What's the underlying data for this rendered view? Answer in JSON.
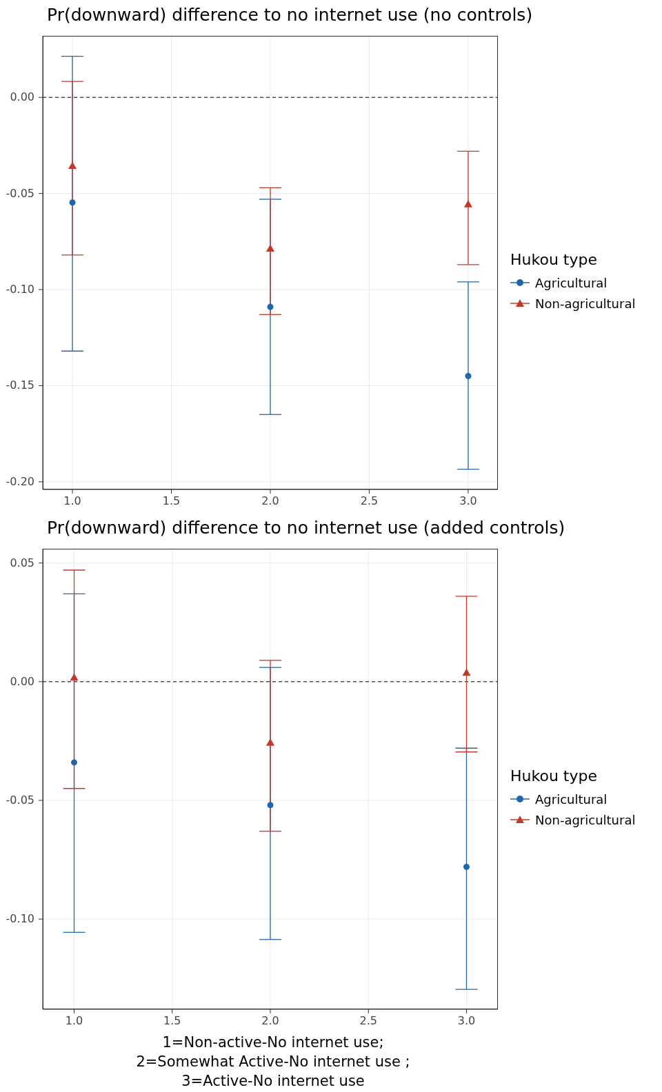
{
  "chart_data": [
    {
      "type": "scatter",
      "title": "Pr(downward) difference to no internet use (no controls)",
      "legend_title": "Hukou type",
      "legend": "right",
      "grid": true,
      "x": [
        1,
        2,
        3
      ],
      "xlim": [
        0.85,
        3.15
      ],
      "xticks": [
        {
          "value": 1,
          "label": "1.0"
        },
        {
          "value": 1.5,
          "label": "1.5"
        },
        {
          "value": 2,
          "label": "2.0"
        },
        {
          "value": 2.5,
          "label": "2.5"
        },
        {
          "value": 3,
          "label": "3.0"
        }
      ],
      "ylim": [
        -0.204,
        0.032
      ],
      "yticks": [
        {
          "value": -0.2,
          "label": "-0.20"
        },
        {
          "value": -0.15,
          "label": "-0.15"
        },
        {
          "value": -0.1,
          "label": "-0.10"
        },
        {
          "value": -0.05,
          "label": "-0.05"
        },
        {
          "value": 0,
          "label": "0.00"
        }
      ],
      "ref_lines": [
        {
          "axis": "y",
          "value": 0,
          "line_style": "dashed",
          "color": "#000000"
        }
      ],
      "series": [
        {
          "name": "Agricultural",
          "color": "#2166ac",
          "marker": "circle",
          "values": [
            -0.0547,
            -0.109,
            -0.145
          ],
          "errors": [
            [
              -0.132,
              0.0214
            ],
            [
              -0.165,
              -0.053
            ],
            [
              -0.1935,
              -0.096
            ]
          ]
        },
        {
          "name": "Non-agricultural",
          "color": "#c0392b",
          "marker": "triangle",
          "values": [
            -0.036,
            -0.079,
            -0.056
          ],
          "errors": [
            [
              -0.082,
              0.0083
            ],
            [
              -0.113,
              -0.047
            ],
            [
              -0.087,
              -0.028
            ]
          ]
        }
      ]
    },
    {
      "type": "scatter",
      "title": "Pr(downward) difference to no internet use (added controls)",
      "legend_title": "Hukou type",
      "legend": "right",
      "grid": true,
      "xlabel": "1=Non-active-No internet use;\n2=Somewhat Active-No internet use ;\n3=Active-No internet use",
      "x": [
        1,
        2,
        3
      ],
      "xlim": [
        0.84,
        3.16
      ],
      "xticks": [
        {
          "value": 1,
          "label": "1.0"
        },
        {
          "value": 1.5,
          "label": "1.5"
        },
        {
          "value": 2,
          "label": "2.0"
        },
        {
          "value": 2.5,
          "label": "2.5"
        },
        {
          "value": 3,
          "label": "3.0"
        }
      ],
      "ylim": [
        -0.138,
        0.056
      ],
      "yticks": [
        {
          "value": -0.1,
          "label": "-0.10"
        },
        {
          "value": -0.05,
          "label": "-0.05"
        },
        {
          "value": 0,
          "label": "0.00"
        },
        {
          "value": 0.05,
          "label": "0.05"
        }
      ],
      "ref_lines": [
        {
          "axis": "y",
          "value": 0,
          "line_style": "dashed",
          "color": "#000000"
        }
      ],
      "series": [
        {
          "name": "Agricultural",
          "color": "#2166ac",
          "marker": "circle",
          "values": [
            -0.034,
            -0.052,
            -0.078
          ],
          "errors": [
            [
              -0.1056,
              0.037
            ],
            [
              -0.1086,
              0.006
            ],
            [
              -0.1296,
              -0.028
            ]
          ]
        },
        {
          "name": "Non-agricultural",
          "color": "#c0392b",
          "marker": "triangle",
          "values": [
            0.0015,
            -0.026,
            0.0035
          ],
          "errors": [
            [
              -0.045,
              0.047
            ],
            [
              -0.063,
              0.009
            ],
            [
              -0.0296,
              0.036
            ]
          ]
        }
      ]
    }
  ]
}
